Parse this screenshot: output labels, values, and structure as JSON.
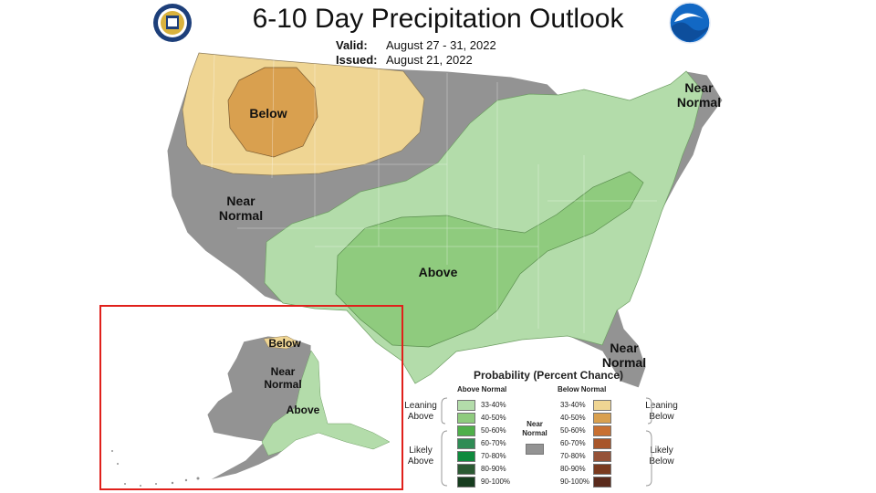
{
  "title": "6-10 Day Precipitation Outlook",
  "valid_label": "Valid:",
  "valid_value": "August 27 - 31, 2022",
  "issued_label": "Issued:",
  "issued_value": "August 21, 2022",
  "logos": {
    "left": "commerce-seal-icon",
    "right": "noaa-logo-icon"
  },
  "map_labels": {
    "below_nw": "Below",
    "near_normal_west": [
      "Near",
      "Normal"
    ],
    "above_central": "Above",
    "near_normal_ne": [
      "Near",
      "Normal"
    ],
    "near_normal_fl": [
      "Near",
      "Normal"
    ],
    "ak_below": "Below",
    "ak_near_normal": [
      "Near",
      "Normal"
    ],
    "ak_above": "Above"
  },
  "colors": {
    "near_normal": "#939393",
    "above_33_40": "#b3dcaa",
    "above_40_50": "#8fcb7e",
    "below_33_40": "#efd593",
    "below_40_50": "#d9a04f",
    "inset_border": "#e0201b"
  },
  "legend": {
    "title": "Probability (Percent Chance)",
    "above_header": "Above Normal",
    "below_header": "Below Normal",
    "near_normal_label": [
      "Near",
      "Normal"
    ],
    "leaning_above": [
      "Leaning",
      "Above"
    ],
    "likely_above": [
      "Likely",
      "Above"
    ],
    "leaning_below": [
      "Leaning",
      "Below"
    ],
    "likely_below": [
      "Likely",
      "Below"
    ],
    "above": [
      {
        "label": "33-40%",
        "color": "#b3dcaa"
      },
      {
        "label": "40-50%",
        "color": "#8fcb7e"
      },
      {
        "label": "50-60%",
        "color": "#4faf4a"
      },
      {
        "label": "60-70%",
        "color": "#2f8c55"
      },
      {
        "label": "70-80%",
        "color": "#0f8a3d"
      },
      {
        "label": "80-90%",
        "color": "#2b5a33"
      },
      {
        "label": "90-100%",
        "color": "#173d1f"
      }
    ],
    "below": [
      {
        "label": "33-40%",
        "color": "#efd593"
      },
      {
        "label": "40-50%",
        "color": "#d9a04f"
      },
      {
        "label": "50-60%",
        "color": "#c87032"
      },
      {
        "label": "60-70%",
        "color": "#a8562a"
      },
      {
        "label": "70-80%",
        "color": "#955238"
      },
      {
        "label": "80-90%",
        "color": "#7a3a1f"
      },
      {
        "label": "90-100%",
        "color": "#5a2a1c"
      }
    ]
  }
}
